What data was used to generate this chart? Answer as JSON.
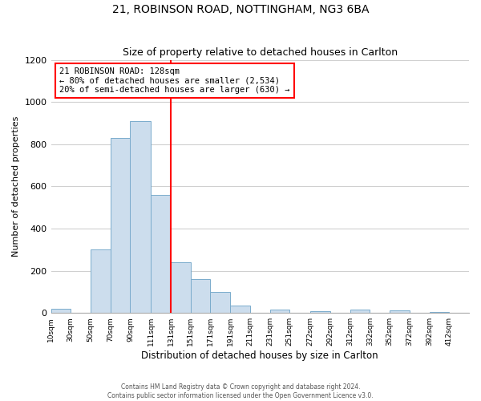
{
  "title": "21, ROBINSON ROAD, NOTTINGHAM, NG3 6BA",
  "subtitle": "Size of property relative to detached houses in Carlton",
  "xlabel": "Distribution of detached houses by size in Carlton",
  "ylabel": "Number of detached properties",
  "bar_color": "#ccdded",
  "bar_edge_color": "#7aabcc",
  "bin_labels": [
    "10sqm",
    "30sqm",
    "50sqm",
    "70sqm",
    "90sqm",
    "111sqm",
    "131sqm",
    "151sqm",
    "171sqm",
    "191sqm",
    "211sqm",
    "231sqm",
    "251sqm",
    "272sqm",
    "292sqm",
    "312sqm",
    "332sqm",
    "352sqm",
    "372sqm",
    "392sqm",
    "412sqm"
  ],
  "bin_left_edges": [
    10,
    30,
    50,
    70,
    90,
    111,
    131,
    151,
    171,
    191,
    211,
    231,
    251,
    272,
    292,
    312,
    332,
    352,
    372,
    392,
    412
  ],
  "bin_widths": [
    20,
    20,
    20,
    20,
    21,
    20,
    20,
    20,
    20,
    20,
    20,
    20,
    21,
    20,
    20,
    20,
    20,
    20,
    20,
    20,
    20
  ],
  "bar_heights": [
    20,
    0,
    300,
    830,
    910,
    560,
    240,
    160,
    100,
    35,
    0,
    15,
    0,
    10,
    0,
    15,
    0,
    12,
    0,
    5,
    0
  ],
  "vline_x": 131,
  "vline_color": "red",
  "ylim": [
    0,
    1200
  ],
  "yticks": [
    0,
    200,
    400,
    600,
    800,
    1000,
    1200
  ],
  "xlim": [
    10,
    432
  ],
  "annotation_title": "21 ROBINSON ROAD: 128sqm",
  "annotation_line1": "← 80% of detached houses are smaller (2,534)",
  "annotation_line2": "20% of semi-detached houses are larger (630) →",
  "footer1": "Contains HM Land Registry data © Crown copyright and database right 2024.",
  "footer2": "Contains public sector information licensed under the Open Government Licence v3.0.",
  "background_color": "#ffffff",
  "grid_color": "#d0d0d0"
}
